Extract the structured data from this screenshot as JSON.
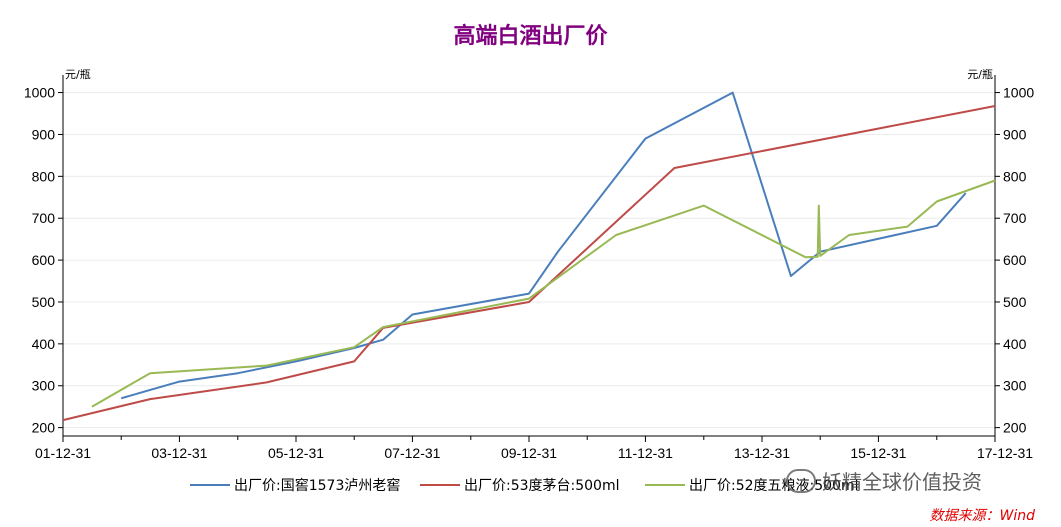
{
  "chart_data": {
    "type": "line",
    "title": "高端白酒出厂价",
    "y_unit_left": "元/瓶",
    "y_unit_right": "元/瓶",
    "ylim": [
      180,
      1030
    ],
    "yticks": [
      200,
      300,
      400,
      500,
      600,
      700,
      800,
      900,
      1000
    ],
    "xlim": [
      "2001-12-31",
      "2017-12-31"
    ],
    "xticks": [
      "01-12-31",
      "03-12-31",
      "05-12-31",
      "07-12-31",
      "09-12-31",
      "11-12-31",
      "13-12-31",
      "15-12-31",
      "17-12-31"
    ],
    "grid": true,
    "legend_position": "bottom",
    "series": [
      {
        "name": "出厂价:国窖1573泸州老窖",
        "color": "#4a7ebb",
        "points": [
          [
            "2002-12-31",
            270
          ],
          [
            "2003-06-30",
            290
          ],
          [
            "2003-12-31",
            310
          ],
          [
            "2004-12-31",
            330
          ],
          [
            "2005-12-31",
            358
          ],
          [
            "2006-12-31",
            390
          ],
          [
            "2007-06-30",
            410
          ],
          [
            "2007-12-31",
            470
          ],
          [
            "2009-12-31",
            520
          ],
          [
            "2010-06-30",
            620
          ],
          [
            "2011-12-31",
            890
          ],
          [
            "2013-06-30",
            1000
          ],
          [
            "2014-06-30",
            562
          ],
          [
            "2014-12-31",
            620
          ],
          [
            "2016-12-31",
            682
          ],
          [
            "2017-06-30",
            760
          ]
        ]
      },
      {
        "name": "出厂价:53度茅台:500ml",
        "color": "#be4b48",
        "points": [
          [
            "2001-12-31",
            218
          ],
          [
            "2003-06-30",
            268
          ],
          [
            "2005-06-30",
            308
          ],
          [
            "2006-12-31",
            358
          ],
          [
            "2007-06-30",
            438
          ],
          [
            "2009-12-31",
            500
          ],
          [
            "2012-06-30",
            820
          ],
          [
            "2017-12-31",
            968
          ]
        ]
      },
      {
        "name": "出厂价:52度五粮液:500ml",
        "color": "#98b954",
        "points": [
          [
            "2002-06-30",
            250
          ],
          [
            "2003-06-30",
            330
          ],
          [
            "2005-06-30",
            348
          ],
          [
            "2006-12-31",
            392
          ],
          [
            "2007-06-30",
            440
          ],
          [
            "2009-12-31",
            508
          ],
          [
            "2011-06-30",
            660
          ],
          [
            "2012-12-31",
            730
          ],
          [
            "2014-09-30",
            607
          ],
          [
            "2014-12-15",
            608
          ],
          [
            "2014-12-22",
            730
          ],
          [
            "2014-12-31",
            610
          ],
          [
            "2015-06-30",
            660
          ],
          [
            "2016-06-30",
            680
          ],
          [
            "2016-12-31",
            740
          ],
          [
            "2017-12-31",
            790
          ]
        ]
      }
    ]
  },
  "legend": {
    "items": [
      "出厂价:国窖1573泸州老窖",
      "出厂价:53度茅台:500ml",
      "出厂价:52度五粮液:500ml"
    ]
  },
  "watermark": "妖精全球价值投资",
  "source": "数据来源：Wind"
}
